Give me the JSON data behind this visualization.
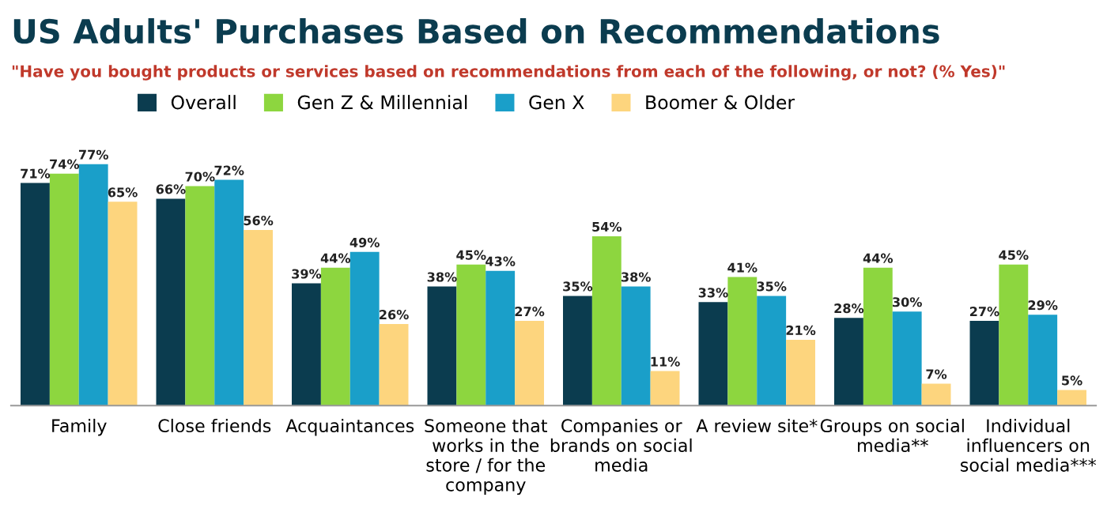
{
  "chart_data": {
    "type": "bar",
    "title": "US Adults' Purchases Based on Recommendations",
    "subtitle": "\"Have you bought products or services based on recommendations from each of the following, or not? (% Yes)\"",
    "categories": [
      "Family",
      "Close friends",
      "Acquaintances",
      "Someone that\nworks in the\nstore / for the\ncompany",
      "Companies or\nbrands on social\nmedia",
      "A review site*",
      "Groups on social\nmedia**",
      "Individual\ninfluencers on\nsocial media***"
    ],
    "series": [
      {
        "name": "Overall",
        "color": "#0b3c4f",
        "values": [
          71,
          66,
          39,
          38,
          35,
          33,
          28,
          27
        ],
        "value_labels": [
          "71%",
          "66%",
          "39%",
          "38%",
          "35%",
          "33%",
          "28%",
          "27%"
        ]
      },
      {
        "name": "Gen Z & Millennial",
        "color": "#8dd63f",
        "values": [
          74,
          70,
          44,
          45,
          54,
          41,
          44,
          45
        ],
        "value_labels": [
          "74%",
          "70%",
          "44%",
          "45%",
          "54%",
          "41%",
          "44%",
          "45%"
        ]
      },
      {
        "name": "Gen X",
        "color": "#1a9fc9",
        "values": [
          77,
          72,
          49,
          43,
          38,
          35,
          30,
          29
        ],
        "value_labels": [
          "77%",
          "72%",
          "49%",
          "43%",
          "38%",
          "35%",
          "30%",
          "29%"
        ]
      },
      {
        "name": "Boomer & Older",
        "color": "#fdd57e",
        "values": [
          65,
          56,
          26,
          27,
          11,
          21,
          7,
          5
        ],
        "value_labels": [
          "65%",
          "56%",
          "26%",
          "27%",
          "11%",
          "21%",
          "7%",
          "5%"
        ]
      }
    ],
    "legend": "top",
    "grid": false
  }
}
